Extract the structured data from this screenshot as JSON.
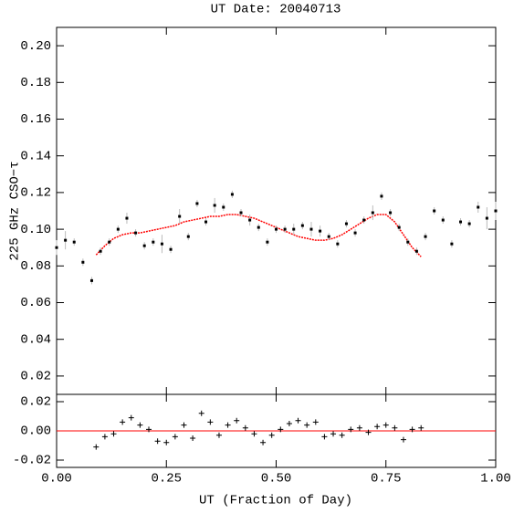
{
  "chart_data": [
    {
      "type": "scatter",
      "title": "UT Date: 20040713",
      "y_label": "225 GHz CSO−τ",
      "xlim": [
        0,
        1
      ],
      "ylim": [
        0.01,
        0.21
      ],
      "yticks": [
        0.02,
        0.04,
        0.06,
        0.08,
        {
          "value": 0.1,
          "label": "0.10"
        },
        0.12,
        0.14,
        0.16,
        0.18,
        {
          "value": 0.2,
          "label": "0.20"
        }
      ],
      "color": "#000000",
      "error_color": "#bbbbbb",
      "x": [
        0,
        0.02,
        0.04,
        0.06,
        0.08,
        0.1,
        0.12,
        0.14,
        0.16,
        0.18,
        0.2,
        0.22,
        0.24,
        0.26,
        0.28,
        0.3,
        0.32,
        0.34,
        0.36,
        0.38,
        0.4,
        0.42,
        0.44,
        0.46,
        0.48,
        0.5,
        0.52,
        0.54,
        0.56,
        0.58,
        0.6,
        0.62,
        0.64,
        0.66,
        0.68,
        0.7,
        0.72,
        0.74,
        0.76,
        0.78,
        0.8,
        0.82,
        0.84,
        0.86,
        0.88,
        0.9,
        0.92,
        0.94,
        0.96,
        0.98,
        1
      ],
      "values": [
        0.09,
        0.094,
        0.093,
        0.082,
        0.072,
        0.088,
        0.093,
        0.1,
        0.106,
        0.098,
        0.091,
        0.093,
        0.092,
        0.089,
        0.107,
        0.096,
        0.114,
        0.104,
        0.113,
        0.112,
        0.119,
        0.109,
        0.105,
        0.101,
        0.093,
        0.1,
        0.1,
        0.1,
        0.102,
        0.1,
        0.099,
        0.096,
        0.092,
        0.103,
        0.098,
        0.105,
        0.109,
        0.118,
        0.109,
        0.101,
        0.093,
        0.088,
        0.096,
        0.11,
        0.105,
        0.092,
        0.104,
        0.103,
        0.112,
        0.106,
        0.11
      ],
      "errors": [
        0.004,
        0.005,
        0.002,
        0.002,
        0.002,
        0.002,
        0.002,
        0.002,
        0.003,
        0.002,
        0.002,
        0.002,
        0.005,
        0.002,
        0.004,
        0.002,
        0.002,
        0.002,
        0.004,
        0.002,
        0.002,
        0.002,
        0.003,
        0.002,
        0.002,
        0.002,
        0.002,
        0.003,
        0.002,
        0.004,
        0.003,
        0.002,
        0.002,
        0.002,
        0.002,
        0.002,
        0.004,
        0.002,
        0.002,
        0.002,
        0.002,
        0.002,
        0.002,
        0.002,
        0.002,
        0.002,
        0.002,
        0.002,
        0.003,
        0.006,
        0.005
      ],
      "fit": {
        "color": "#ff0000",
        "x": [
          0.09,
          0.11,
          0.13,
          0.15,
          0.17,
          0.19,
          0.21,
          0.23,
          0.25,
          0.27,
          0.29,
          0.31,
          0.33,
          0.35,
          0.37,
          0.39,
          0.41,
          0.43,
          0.45,
          0.47,
          0.49,
          0.51,
          0.53,
          0.55,
          0.57,
          0.59,
          0.61,
          0.63,
          0.65,
          0.67,
          0.69,
          0.71,
          0.73,
          0.75,
          0.77,
          0.79,
          0.81,
          0.83
        ],
        "values": [
          0.086,
          0.091,
          0.095,
          0.097,
          0.098,
          0.098,
          0.099,
          0.1,
          0.101,
          0.102,
          0.104,
          0.105,
          0.106,
          0.107,
          0.107,
          0.108,
          0.108,
          0.107,
          0.106,
          0.104,
          0.102,
          0.1,
          0.098,
          0.096,
          0.095,
          0.094,
          0.094,
          0.095,
          0.097,
          0.1,
          0.103,
          0.106,
          0.108,
          0.108,
          0.104,
          0.097,
          0.09,
          0.085
        ]
      }
    },
    {
      "type": "scatter",
      "x_label": "UT (Fraction of Day)",
      "xlim": [
        0,
        1
      ],
      "ylim": [
        -0.025,
        0.025
      ],
      "xticks": [
        {
          "value": 0,
          "label": "0.00"
        },
        0.25,
        {
          "value": 0.5,
          "label": "0.50"
        },
        0.75,
        {
          "value": 1,
          "label": "1.00"
        }
      ],
      "yticks": [
        -0.02,
        {
          "value": 0,
          "label": "0.00"
        },
        0.02
      ],
      "color": "#000000",
      "zero_line_color": "#ff0000",
      "x": [
        0.09,
        0.11,
        0.13,
        0.15,
        0.17,
        0.19,
        0.21,
        0.23,
        0.25,
        0.27,
        0.29,
        0.31,
        0.33,
        0.35,
        0.37,
        0.39,
        0.41,
        0.43,
        0.45,
        0.47,
        0.49,
        0.51,
        0.53,
        0.55,
        0.57,
        0.59,
        0.61,
        0.63,
        0.65,
        0.67,
        0.69,
        0.71,
        0.73,
        0.75,
        0.77,
        0.79,
        0.81,
        0.83
      ],
      "values": [
        -0.011,
        -0.004,
        -0.002,
        0.006,
        0.009,
        0.004,
        0.001,
        -0.007,
        -0.008,
        -0.004,
        0.004,
        -0.005,
        0.012,
        0.006,
        -0.003,
        0.004,
        0.007,
        0.002,
        -0.002,
        -0.008,
        -0.003,
        0.001,
        0.005,
        0.007,
        0.004,
        0.006,
        -0.004,
        -0.002,
        -0.003,
        0.001,
        0.002,
        -0.001,
        0.003,
        0.004,
        0.002,
        -0.006,
        0.001,
        0.002
      ]
    }
  ]
}
